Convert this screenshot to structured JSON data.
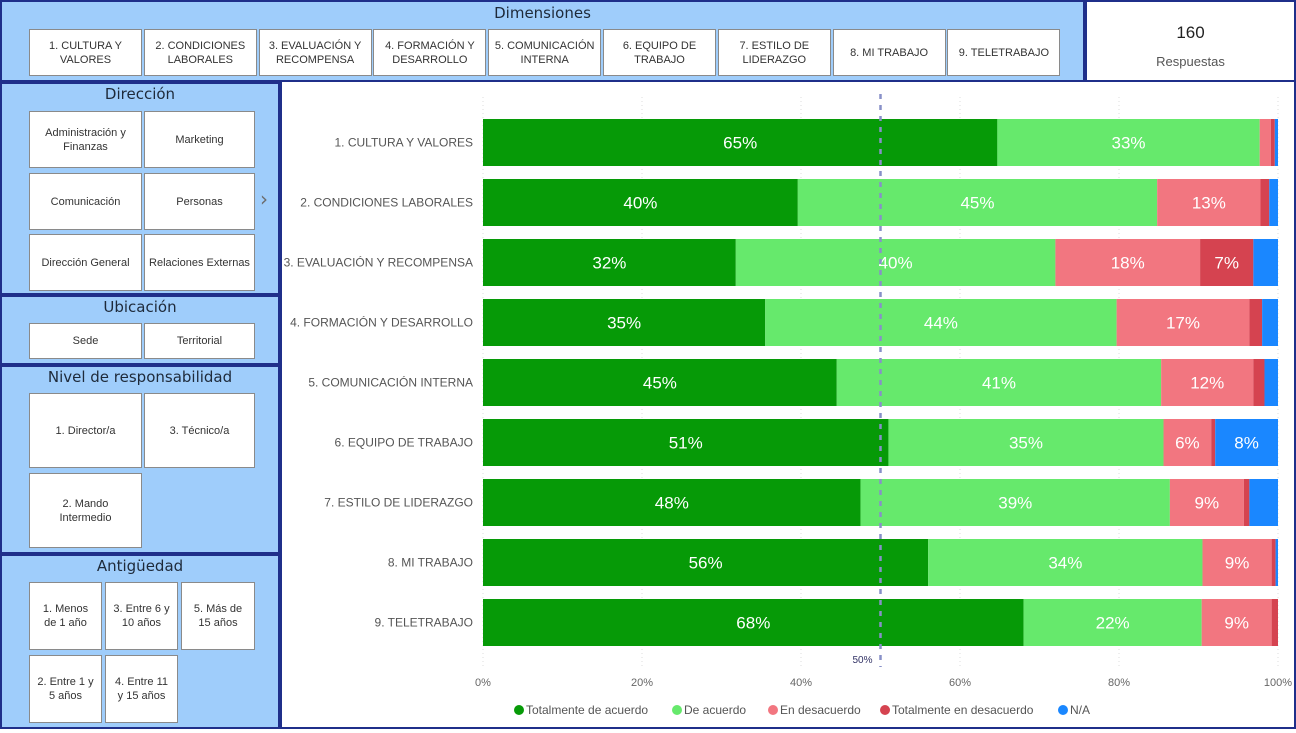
{
  "dimensiones": {
    "title": "Dimensiones",
    "buttons": [
      "1. CULTURA Y\nVALORES",
      "2. CONDICIONES\nLABORALES",
      "3. EVALUACIÓN Y\nRECOMPENSA",
      "4. FORMACIÓN Y\nDESARROLLO",
      "5. COMUNICACIÓN\nINTERNA",
      "6. EQUIPO DE\nTRABAJO",
      "7. ESTILO DE\nLIDERAZGO",
      "8. MI TRABAJO",
      "9. TELETRABAJO"
    ]
  },
  "kpi": {
    "value": "160",
    "label": "Respuestas"
  },
  "direccion": {
    "title": "Dirección",
    "buttons": [
      "Administración y\nFinanzas",
      "Marketing",
      "Comunicación",
      "Personas",
      "Dirección General",
      "Relaciones Externas"
    ],
    "next_icon": "chevron-right-icon"
  },
  "ubicacion": {
    "title": "Ubicación",
    "buttons": [
      "Sede",
      "Territorial"
    ]
  },
  "nivel": {
    "title": "Nivel de responsabilidad",
    "buttons": [
      "1. Director/a",
      "3. Técnico/a",
      "2. Mando\nIntermedio"
    ]
  },
  "antiguedad": {
    "title": "Antigüedad",
    "buttons": [
      "1. Menos\nde 1 año",
      "3. Entre 6 y\n10 años",
      "5. Más de\n15 años",
      "2. Entre 1 y\n5 años",
      "4. Entre 11\ny 15 años"
    ]
  },
  "chart_data": {
    "type": "bar",
    "orientation": "horizontal-stacked-100",
    "title": "",
    "xlabel": "",
    "ylabel": "",
    "xlim": [
      0,
      100
    ],
    "x_ticks": [
      "0%",
      "20%",
      "40%",
      "60%",
      "80%",
      "100%"
    ],
    "reference_line": {
      "value": 50,
      "label": "50%"
    },
    "grid": true,
    "legend_position": "bottom",
    "categories": [
      "1. CULTURA Y VALORES",
      "2. CONDICIONES LABORALES",
      "3. EVALUACIÓN Y RECOMPENSA",
      "4. FORMACIÓN Y DESARROLLO",
      "5. COMUNICACIÓN INTERNA",
      "6. EQUIPO DE TRABAJO",
      "7. ESTILO DE LIDERAZGO",
      "8. MI TRABAJO",
      "9. TELETRABAJO"
    ],
    "series": [
      {
        "name": "Totalmente de acuerdo",
        "color": "#069a07",
        "values": [
          64.7,
          39.6,
          31.8,
          35.5,
          44.5,
          51.0,
          47.5,
          56.0,
          68.0
        ],
        "labels": [
          "65%",
          "40%",
          "32%",
          "35%",
          "45%",
          "51%",
          "48%",
          "56%",
          "68%"
        ]
      },
      {
        "name": "De acuerdo",
        "color": "#66e96c",
        "values": [
          33.0,
          45.2,
          40.2,
          44.2,
          40.8,
          34.6,
          38.9,
          34.5,
          22.4
        ],
        "labels": [
          "33%",
          "45%",
          "40%",
          "44%",
          "41%",
          "35%",
          "39%",
          "34%",
          "22%"
        ]
      },
      {
        "name": "En desacuerdo",
        "color": "#f27680",
        "values": [
          1.4,
          13.0,
          18.2,
          16.7,
          11.6,
          6.0,
          9.3,
          8.7,
          8.8
        ],
        "labels": [
          "",
          "13%",
          "18%",
          "17%",
          "12%",
          "6%",
          "9%",
          "9%",
          "9%"
        ]
      },
      {
        "name": "Totalmente en desacuerdo",
        "color": "#d54350",
        "values": [
          0.5,
          1.1,
          6.7,
          1.6,
          1.4,
          0.5,
          0.7,
          0.5,
          0.8
        ],
        "labels": [
          "",
          "",
          "7%",
          "",
          "",
          "",
          "",
          "",
          ""
        ]
      },
      {
        "name": "N/A",
        "color": "#1a87ff",
        "values": [
          0.4,
          1.1,
          3.1,
          2.0,
          1.7,
          7.9,
          3.6,
          0.3,
          0.0
        ],
        "labels": [
          "",
          "",
          "",
          "",
          "",
          "8%",
          "",
          "",
          ""
        ]
      }
    ]
  }
}
